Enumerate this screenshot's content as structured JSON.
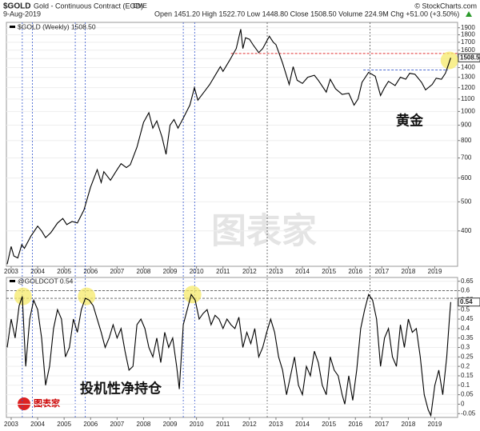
{
  "header": {
    "symbol": "$GOLD",
    "name": "Gold - Continuous Contract (EOD)",
    "exchange": "CME",
    "source": "© StockCharts.com",
    "date": "9-Aug-2019",
    "quote": "Open 1451.20 High 1522.70 Low 1448.80 Close 1508.50 Volume 224.9M Chg +51.00 (+3.50%)"
  },
  "watermark": "图表家",
  "logo": "图表家",
  "chart_data": [
    {
      "type": "line",
      "log_scale": true,
      "grid": true,
      "annotation": "黄金",
      "last_label": "1508.5",
      "xlim": [
        2002.82,
        2019.86
      ],
      "xticks": [
        2003,
        2004,
        2005,
        2006,
        2007,
        2008,
        2009,
        2010,
        2011,
        2012,
        2013,
        2014,
        2015,
        2016,
        2017,
        2018,
        2019
      ],
      "ylim": [
        305,
        1980
      ],
      "yticks": [
        400,
        500,
        600,
        700,
        800,
        900,
        1000,
        1100,
        1200,
        1300,
        1400,
        1500,
        1600,
        1700,
        1800,
        1900
      ],
      "x": [
        2002.85,
        2003.0,
        2003.1,
        2003.25,
        2003.4,
        2003.5,
        2003.75,
        2004.0,
        2004.15,
        2004.3,
        2004.5,
        2004.75,
        2004.95,
        2005.1,
        2005.3,
        2005.5,
        2005.75,
        2006.0,
        2006.25,
        2006.4,
        2006.5,
        2006.75,
        2007.0,
        2007.15,
        2007.35,
        2007.5,
        2007.75,
        2008.0,
        2008.2,
        2008.35,
        2008.5,
        2008.7,
        2008.85,
        2009.0,
        2009.15,
        2009.3,
        2009.5,
        2009.75,
        2009.92,
        2010.05,
        2010.25,
        2010.5,
        2010.75,
        2010.9,
        2011.0,
        2011.25,
        2011.5,
        2011.67,
        2011.75,
        2011.85,
        2012.0,
        2012.15,
        2012.35,
        2012.5,
        2012.75,
        2012.9,
        2013.0,
        2013.25,
        2013.5,
        2013.65,
        2013.8,
        2014.0,
        2014.2,
        2014.45,
        2014.6,
        2014.9,
        2015.05,
        2015.25,
        2015.5,
        2015.75,
        2015.95,
        2016.1,
        2016.25,
        2016.5,
        2016.75,
        2016.95,
        2017.1,
        2017.25,
        2017.5,
        2017.7,
        2017.9,
        2018.05,
        2018.25,
        2018.5,
        2018.65,
        2018.9,
        2019.05,
        2019.25,
        2019.4,
        2019.5,
        2019.6
      ],
      "series": [
        {
          "name": "$GOLD (Weekly) 1508.50",
          "color": "#000000",
          "values": [
            310,
            355,
            330,
            325,
            360,
            350,
            385,
            415,
            400,
            380,
            395,
            425,
            440,
            420,
            430,
            425,
            470,
            560,
            640,
            580,
            630,
            590,
            640,
            670,
            650,
            665,
            760,
            920,
            990,
            880,
            930,
            820,
            720,
            900,
            940,
            880,
            950,
            1050,
            1200,
            1090,
            1150,
            1230,
            1340,
            1410,
            1360,
            1480,
            1620,
            1880,
            1620,
            1760,
            1740,
            1660,
            1570,
            1620,
            1780,
            1700,
            1670,
            1450,
            1230,
            1410,
            1270,
            1240,
            1300,
            1320,
            1270,
            1160,
            1280,
            1190,
            1140,
            1150,
            1050,
            1100,
            1250,
            1350,
            1310,
            1130,
            1200,
            1260,
            1220,
            1300,
            1280,
            1340,
            1330,
            1250,
            1180,
            1230,
            1290,
            1280,
            1340,
            1420,
            1508.5
          ]
        }
      ],
      "reference_lines": [
        {
          "y": 1560,
          "from": 2011.3,
          "to": 2019.86,
          "color": "#e03030"
        },
        {
          "y": 1375,
          "from": 2016.3,
          "to": 2019.5,
          "color": "#3355cc"
        }
      ],
      "vertical_lines": [
        {
          "x": 2003.42,
          "color": "#3355cc"
        },
        {
          "x": 2003.8,
          "color": "#3355cc"
        },
        {
          "x": 2005.42,
          "color": "#3355cc"
        },
        {
          "x": 2005.8,
          "color": "#3355cc"
        },
        {
          "x": 2009.5,
          "color": "#3355cc"
        },
        {
          "x": 2009.93,
          "color": "#3355cc"
        },
        {
          "x": 2012.67,
          "color": "#555555"
        },
        {
          "x": 2016.55,
          "color": "#555555"
        }
      ],
      "highlights": [
        {
          "x": 2019.55,
          "y": 1480
        }
      ]
    },
    {
      "type": "line",
      "grid": true,
      "annotation": "投机性净持仓",
      "last_label": "0.54",
      "xlim": [
        2002.82,
        2019.86
      ],
      "xticks": [
        2003,
        2004,
        2005,
        2006,
        2007,
        2008,
        2009,
        2010,
        2011,
        2012,
        2013,
        2014,
        2015,
        2016,
        2017,
        2018,
        2019
      ],
      "ylim": [
        -0.07,
        0.67
      ],
      "yticks": [
        0.65,
        0.6,
        0.55,
        0.5,
        0.45,
        0.4,
        0.35,
        0.3,
        0.25,
        0.2,
        0.15,
        0.1,
        0.05,
        0,
        -0.05
      ],
      "x": [
        2002.85,
        2003.0,
        2003.15,
        2003.3,
        2003.42,
        2003.55,
        2003.7,
        2003.85,
        2004.0,
        2004.15,
        2004.3,
        2004.45,
        2004.6,
        2004.75,
        2004.9,
        2005.05,
        2005.2,
        2005.35,
        2005.5,
        2005.65,
        2005.8,
        2005.95,
        2006.1,
        2006.25,
        2006.4,
        2006.55,
        2006.7,
        2006.85,
        2007.0,
        2007.15,
        2007.3,
        2007.45,
        2007.6,
        2007.75,
        2007.9,
        2008.05,
        2008.2,
        2008.35,
        2008.5,
        2008.65,
        2008.8,
        2008.95,
        2009.1,
        2009.25,
        2009.35,
        2009.5,
        2009.65,
        2009.8,
        2009.95,
        2010.1,
        2010.25,
        2010.4,
        2010.55,
        2010.7,
        2010.85,
        2011.0,
        2011.15,
        2011.3,
        2011.45,
        2011.6,
        2011.75,
        2011.9,
        2012.05,
        2012.2,
        2012.35,
        2012.5,
        2012.65,
        2012.8,
        2012.95,
        2013.1,
        2013.25,
        2013.4,
        2013.55,
        2013.7,
        2013.85,
        2014.0,
        2014.15,
        2014.3,
        2014.45,
        2014.6,
        2014.75,
        2014.9,
        2015.05,
        2015.2,
        2015.35,
        2015.5,
        2015.6,
        2015.75,
        2015.9,
        2016.05,
        2016.2,
        2016.35,
        2016.5,
        2016.65,
        2016.8,
        2016.95,
        2017.1,
        2017.25,
        2017.4,
        2017.55,
        2017.7,
        2017.85,
        2018.0,
        2018.15,
        2018.3,
        2018.45,
        2018.6,
        2018.75,
        2018.85,
        2019.0,
        2019.15,
        2019.3,
        2019.45,
        2019.55,
        2019.6
      ],
      "series": [
        {
          "name": "@GOLDCOT 0.54",
          "color": "#000000",
          "values": [
            0.3,
            0.45,
            0.35,
            0.52,
            0.57,
            0.2,
            0.45,
            0.55,
            0.5,
            0.35,
            0.1,
            0.2,
            0.4,
            0.5,
            0.45,
            0.25,
            0.3,
            0.45,
            0.38,
            0.5,
            0.56,
            0.55,
            0.52,
            0.45,
            0.38,
            0.3,
            0.35,
            0.42,
            0.35,
            0.4,
            0.28,
            0.18,
            0.2,
            0.42,
            0.45,
            0.4,
            0.3,
            0.25,
            0.35,
            0.22,
            0.38,
            0.3,
            0.35,
            0.2,
            0.08,
            0.42,
            0.5,
            0.58,
            0.55,
            0.45,
            0.48,
            0.5,
            0.42,
            0.47,
            0.45,
            0.4,
            0.45,
            0.42,
            0.4,
            0.46,
            0.3,
            0.38,
            0.32,
            0.4,
            0.25,
            0.3,
            0.38,
            0.45,
            0.38,
            0.25,
            0.18,
            0.05,
            0.15,
            0.25,
            0.1,
            0.05,
            0.2,
            0.15,
            0.28,
            0.22,
            0.1,
            0.05,
            0.25,
            0.18,
            0.15,
            0.05,
            0,
            0.15,
            0.02,
            0.18,
            0.4,
            0.5,
            0.58,
            0.55,
            0.45,
            0.2,
            0.35,
            0.4,
            0.25,
            0.2,
            0.42,
            0.3,
            0.45,
            0.38,
            0.4,
            0.25,
            0.05,
            -0.03,
            -0.06,
            0.1,
            0.18,
            0.05,
            0.25,
            0.45,
            0.54
          ]
        }
      ],
      "reference_lines": [
        {
          "y": 0.6,
          "from": 2002.82,
          "to": 2019.86,
          "color": "#555555"
        },
        {
          "y": 0.56,
          "from": 2002.82,
          "to": 2019.86,
          "color": "#555555"
        }
      ],
      "highlights": [
        {
          "x": 2003.45,
          "y": 0.57
        },
        {
          "x": 2005.85,
          "y": 0.57
        },
        {
          "x": 2009.85,
          "y": 0.58
        }
      ]
    }
  ]
}
